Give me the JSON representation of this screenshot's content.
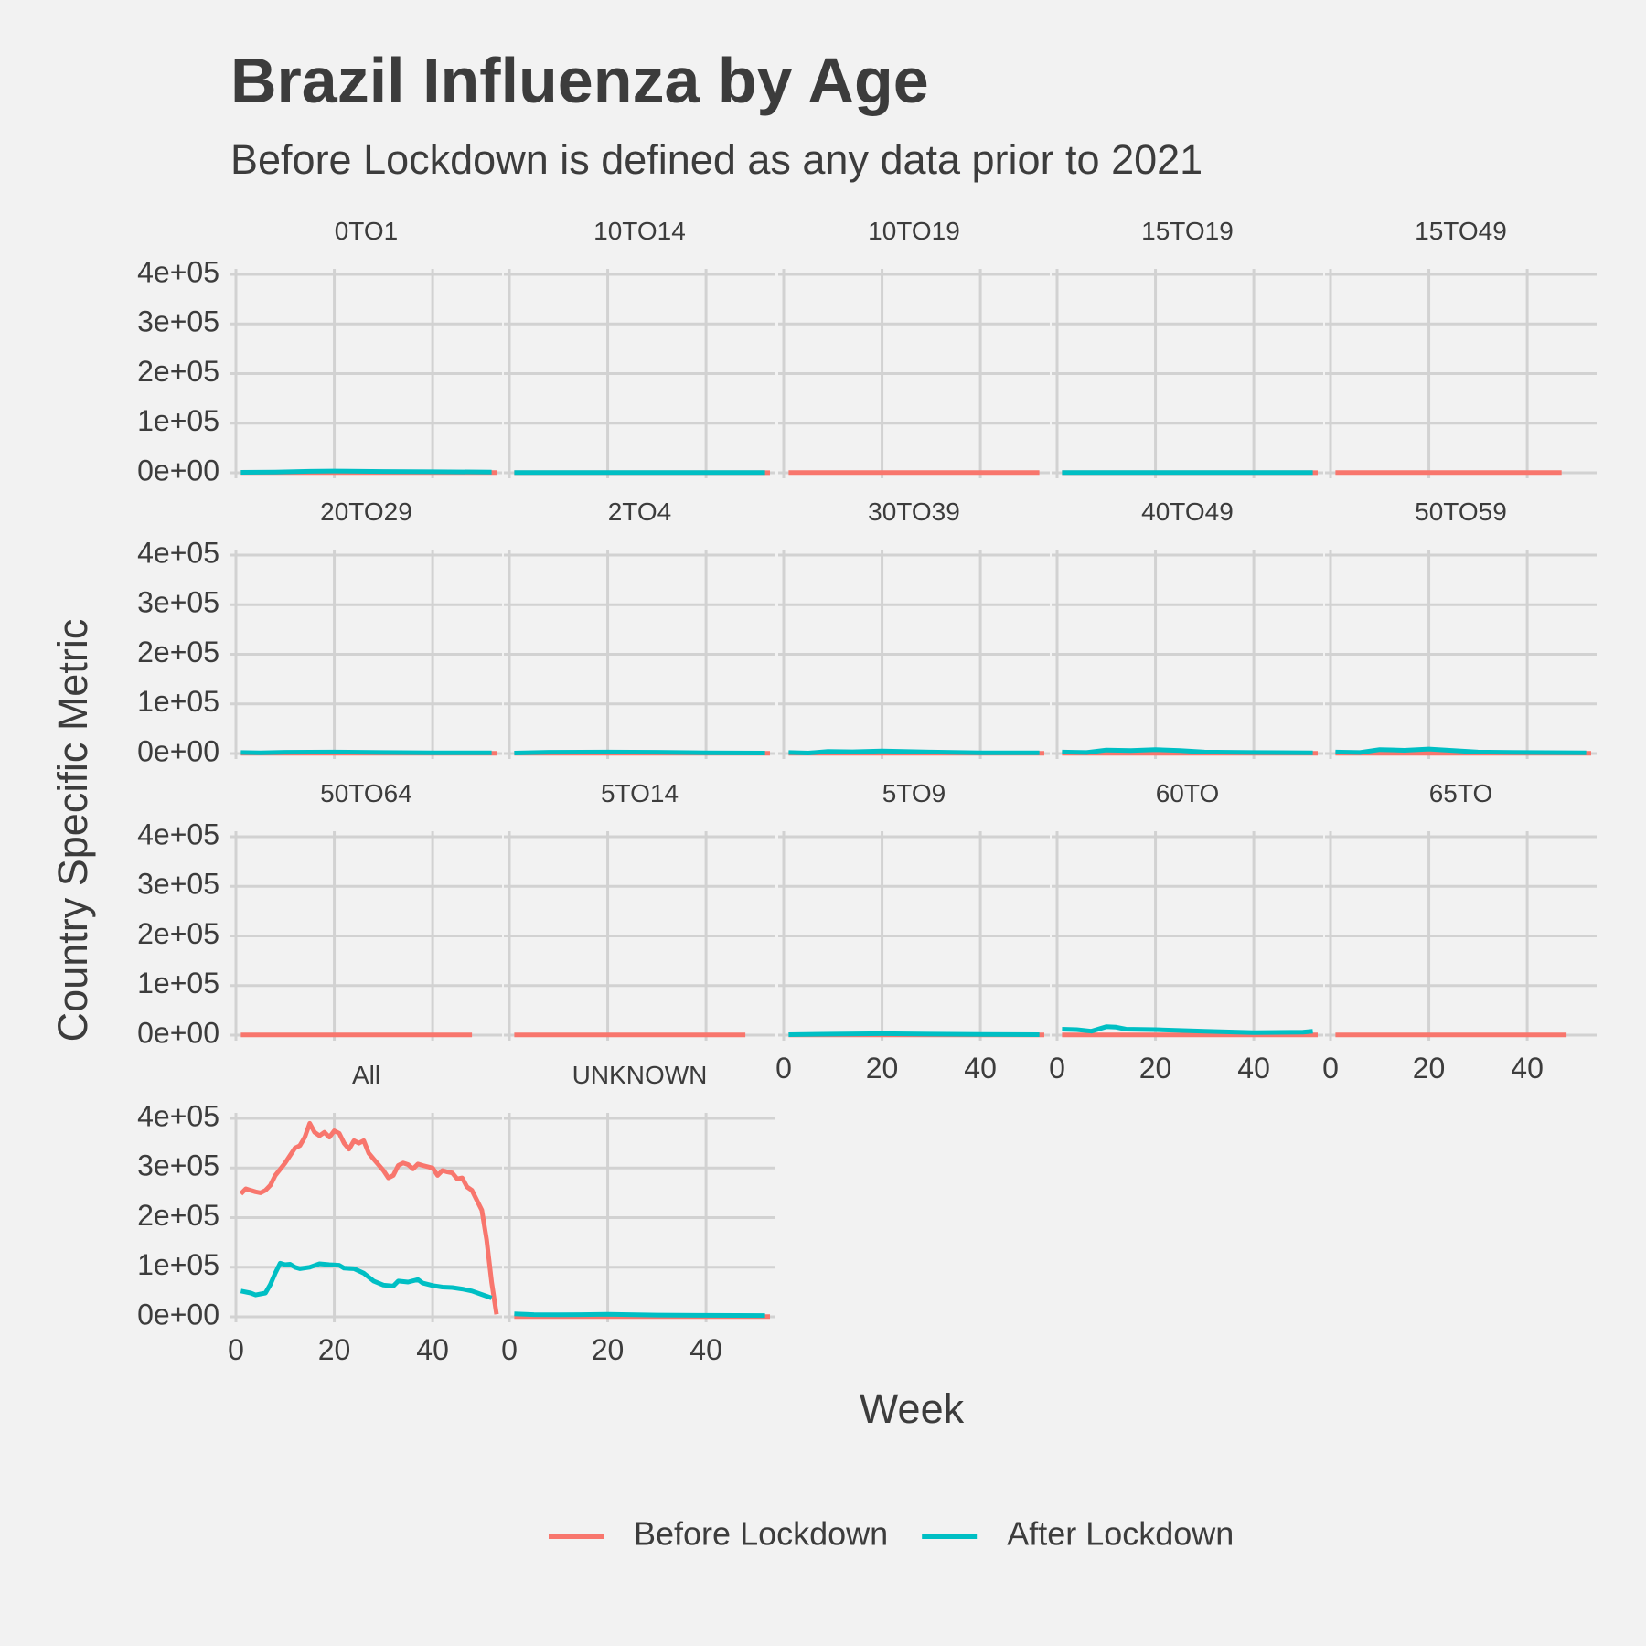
{
  "colors": {
    "before": "#F8766D",
    "after": "#00BFC4",
    "background": "#F2F2F2",
    "grid": "#D2D2D2",
    "text": "#3C3C3C"
  },
  "chart_data": {
    "type": "line",
    "title": "Brazil Influenza by Age",
    "subtitle": "Before Lockdown is defined as any data prior to 2021",
    "xlabel": "Week",
    "ylabel": "Country Specific Metric",
    "ylim": [
      0,
      400000
    ],
    "xlim": [
      0,
      53
    ],
    "yticks": [
      0,
      100000,
      200000,
      300000,
      400000
    ],
    "ytick_labels": [
      "0e+00",
      "1e+05",
      "2e+05",
      "3e+05",
      "4e+05"
    ],
    "xticks": [
      0,
      20,
      40
    ],
    "xtick_labels": [
      "0",
      "20",
      "40"
    ],
    "grid": true,
    "legend": {
      "position": "bottom",
      "entries": [
        {
          "key": "before",
          "label": "Before Lockdown"
        },
        {
          "key": "after",
          "label": "After Lockdown"
        }
      ]
    },
    "panels": [
      {
        "label": "0TO1",
        "before": [
          [
            1,
            500
          ],
          [
            53,
            500
          ]
        ],
        "after": [
          [
            1,
            1000
          ],
          [
            8,
            1500
          ],
          [
            15,
            3000
          ],
          [
            20,
            3500
          ],
          [
            30,
            2500
          ],
          [
            40,
            2000
          ],
          [
            52,
            1500
          ]
        ]
      },
      {
        "label": "10TO14",
        "before": [
          [
            1,
            200
          ],
          [
            53,
            200
          ]
        ],
        "after": [
          [
            1,
            500
          ],
          [
            20,
            600
          ],
          [
            40,
            400
          ],
          [
            52,
            300
          ]
        ]
      },
      {
        "label": "10TO19",
        "before": [
          [
            1,
            300
          ],
          [
            52,
            300
          ]
        ],
        "after": []
      },
      {
        "label": "15TO19",
        "before": [
          [
            1,
            200
          ],
          [
            53,
            200
          ]
        ],
        "after": [
          [
            1,
            400
          ],
          [
            20,
            400
          ],
          [
            52,
            300
          ]
        ]
      },
      {
        "label": "15TO49",
        "before": [
          [
            1,
            500
          ],
          [
            47,
            500
          ]
        ],
        "after": []
      },
      {
        "label": "20TO29",
        "before": [
          [
            1,
            500
          ],
          [
            53,
            500
          ]
        ],
        "after": [
          [
            1,
            2000
          ],
          [
            5,
            1500
          ],
          [
            10,
            2500
          ],
          [
            20,
            3000
          ],
          [
            30,
            2000
          ],
          [
            40,
            1500
          ],
          [
            52,
            1500
          ]
        ]
      },
      {
        "label": "2TO4",
        "before": [
          [
            1,
            300
          ],
          [
            53,
            300
          ]
        ],
        "after": [
          [
            1,
            1000
          ],
          [
            8,
            2500
          ],
          [
            20,
            3000
          ],
          [
            30,
            2500
          ],
          [
            40,
            1500
          ],
          [
            52,
            1000
          ]
        ]
      },
      {
        "label": "30TO39",
        "before": [
          [
            1,
            500
          ],
          [
            53,
            500
          ]
        ],
        "after": [
          [
            1,
            2000
          ],
          [
            5,
            1000
          ],
          [
            9,
            4000
          ],
          [
            14,
            3500
          ],
          [
            20,
            5000
          ],
          [
            30,
            3000
          ],
          [
            40,
            1500
          ],
          [
            52,
            1500
          ]
        ]
      },
      {
        "label": "40TO49",
        "before": [
          [
            1,
            300
          ],
          [
            53,
            300
          ]
        ],
        "after": [
          [
            1,
            3000
          ],
          [
            6,
            2000
          ],
          [
            10,
            7000
          ],
          [
            15,
            6000
          ],
          [
            20,
            8000
          ],
          [
            25,
            6000
          ],
          [
            30,
            3000
          ],
          [
            40,
            2000
          ],
          [
            52,
            1500
          ]
        ]
      },
      {
        "label": "50TO59",
        "before": [
          [
            1,
            300
          ],
          [
            53,
            300
          ]
        ],
        "after": [
          [
            1,
            3000
          ],
          [
            6,
            2000
          ],
          [
            10,
            8000
          ],
          [
            15,
            6500
          ],
          [
            20,
            9000
          ],
          [
            25,
            6000
          ],
          [
            30,
            3000
          ],
          [
            40,
            2000
          ],
          [
            52,
            1500
          ]
        ]
      },
      {
        "label": "50TO64",
        "before": [
          [
            1,
            500
          ],
          [
            48,
            500
          ]
        ],
        "after": []
      },
      {
        "label": "5TO14",
        "before": [
          [
            1,
            500
          ],
          [
            48,
            500
          ]
        ],
        "after": []
      },
      {
        "label": "5TO9",
        "before": [
          [
            1,
            300
          ],
          [
            53,
            300
          ]
        ],
        "after": [
          [
            1,
            1000
          ],
          [
            10,
            2000
          ],
          [
            20,
            3000
          ],
          [
            30,
            2000
          ],
          [
            40,
            1500
          ],
          [
            52,
            1000
          ]
        ]
      },
      {
        "label": "60TO",
        "before": [
          [
            1,
            500
          ],
          [
            53,
            500
          ]
        ],
        "after": [
          [
            1,
            12000
          ],
          [
            4,
            11000
          ],
          [
            7,
            8000
          ],
          [
            10,
            17000
          ],
          [
            12,
            16000
          ],
          [
            14,
            12000
          ],
          [
            20,
            11000
          ],
          [
            30,
            8000
          ],
          [
            40,
            5000
          ],
          [
            50,
            6000
          ],
          [
            52,
            8000
          ]
        ]
      },
      {
        "label": "65TO",
        "before": [
          [
            1,
            500
          ],
          [
            48,
            500
          ]
        ],
        "after": []
      },
      {
        "label": "All",
        "before": [
          [
            1,
            248000
          ],
          [
            2,
            258000
          ],
          [
            3,
            255000
          ],
          [
            4,
            252000
          ],
          [
            5,
            250000
          ],
          [
            6,
            255000
          ],
          [
            7,
            265000
          ],
          [
            8,
            285000
          ],
          [
            10,
            310000
          ],
          [
            12,
            340000
          ],
          [
            13,
            345000
          ],
          [
            14,
            362000
          ],
          [
            15,
            390000
          ],
          [
            16,
            372000
          ],
          [
            17,
            365000
          ],
          [
            18,
            372000
          ],
          [
            19,
            362000
          ],
          [
            20,
            375000
          ],
          [
            21,
            370000
          ],
          [
            22,
            350000
          ],
          [
            23,
            338000
          ],
          [
            24,
            355000
          ],
          [
            25,
            350000
          ],
          [
            26,
            355000
          ],
          [
            27,
            330000
          ],
          [
            28,
            318000
          ],
          [
            30,
            295000
          ],
          [
            31,
            280000
          ],
          [
            32,
            285000
          ],
          [
            33,
            305000
          ],
          [
            34,
            310000
          ],
          [
            35,
            307000
          ],
          [
            36,
            298000
          ],
          [
            37,
            308000
          ],
          [
            38,
            305000
          ],
          [
            40,
            300000
          ],
          [
            41,
            285000
          ],
          [
            42,
            295000
          ],
          [
            43,
            292000
          ],
          [
            44,
            290000
          ],
          [
            45,
            278000
          ],
          [
            46,
            280000
          ],
          [
            47,
            262000
          ],
          [
            48,
            255000
          ],
          [
            50,
            215000
          ],
          [
            51,
            155000
          ],
          [
            52,
            70000
          ],
          [
            53,
            5000
          ]
        ],
        "after": [
          [
            1,
            52000
          ],
          [
            3,
            48000
          ],
          [
            4,
            44000
          ],
          [
            6,
            48000
          ],
          [
            7,
            65000
          ],
          [
            8,
            88000
          ],
          [
            9,
            108000
          ],
          [
            10,
            105000
          ],
          [
            11,
            106000
          ],
          [
            12,
            100000
          ],
          [
            13,
            97000
          ],
          [
            15,
            100000
          ],
          [
            17,
            107000
          ],
          [
            19,
            105000
          ],
          [
            21,
            104000
          ],
          [
            22,
            98000
          ],
          [
            24,
            97000
          ],
          [
            26,
            88000
          ],
          [
            28,
            72000
          ],
          [
            30,
            64000
          ],
          [
            32,
            62000
          ],
          [
            33,
            72000
          ],
          [
            35,
            70000
          ],
          [
            37,
            75000
          ],
          [
            38,
            68000
          ],
          [
            40,
            63000
          ],
          [
            42,
            60000
          ],
          [
            44,
            59000
          ],
          [
            46,
            56000
          ],
          [
            48,
            52000
          ],
          [
            50,
            45000
          ],
          [
            52,
            38000
          ]
        ]
      },
      {
        "label": "UNKNOWN",
        "before": [
          [
            1,
            500
          ],
          [
            53,
            500
          ]
        ],
        "after": [
          [
            1,
            6000
          ],
          [
            5,
            4500
          ],
          [
            10,
            4000
          ],
          [
            20,
            5000
          ],
          [
            30,
            3500
          ],
          [
            40,
            3000
          ],
          [
            52,
            2500
          ]
        ]
      }
    ]
  }
}
